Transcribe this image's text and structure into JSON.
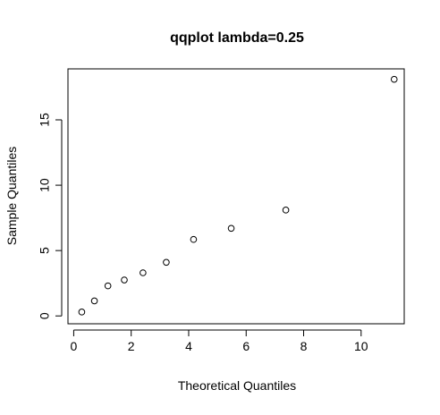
{
  "chart_data": {
    "type": "scatter",
    "title": "qqplot lambda=0.25",
    "xlabel": "Theoretical Quantiles",
    "ylabel": "Sample Quantiles",
    "xlim": [
      -0.2,
      11.5
    ],
    "ylim": [
      -0.6,
      18.9
    ],
    "xticks": [
      0,
      2,
      4,
      6,
      8,
      10
    ],
    "yticks": [
      0,
      5,
      10,
      15
    ],
    "xtick_labels": [
      "0",
      "2",
      "4",
      "6",
      "8",
      "10"
    ],
    "ytick_labels": [
      "0",
      "5",
      "10",
      "15"
    ],
    "grid": false,
    "marker": "open-circle",
    "points": [
      {
        "x": 0.28,
        "y": 0.3
      },
      {
        "x": 0.72,
        "y": 1.15
      },
      {
        "x": 1.19,
        "y": 2.3
      },
      {
        "x": 1.76,
        "y": 2.75
      },
      {
        "x": 2.41,
        "y": 3.3
      },
      {
        "x": 3.22,
        "y": 4.1
      },
      {
        "x": 4.17,
        "y": 5.85
      },
      {
        "x": 5.48,
        "y": 6.7
      },
      {
        "x": 7.38,
        "y": 8.1
      },
      {
        "x": 11.15,
        "y": 18.1
      }
    ]
  }
}
